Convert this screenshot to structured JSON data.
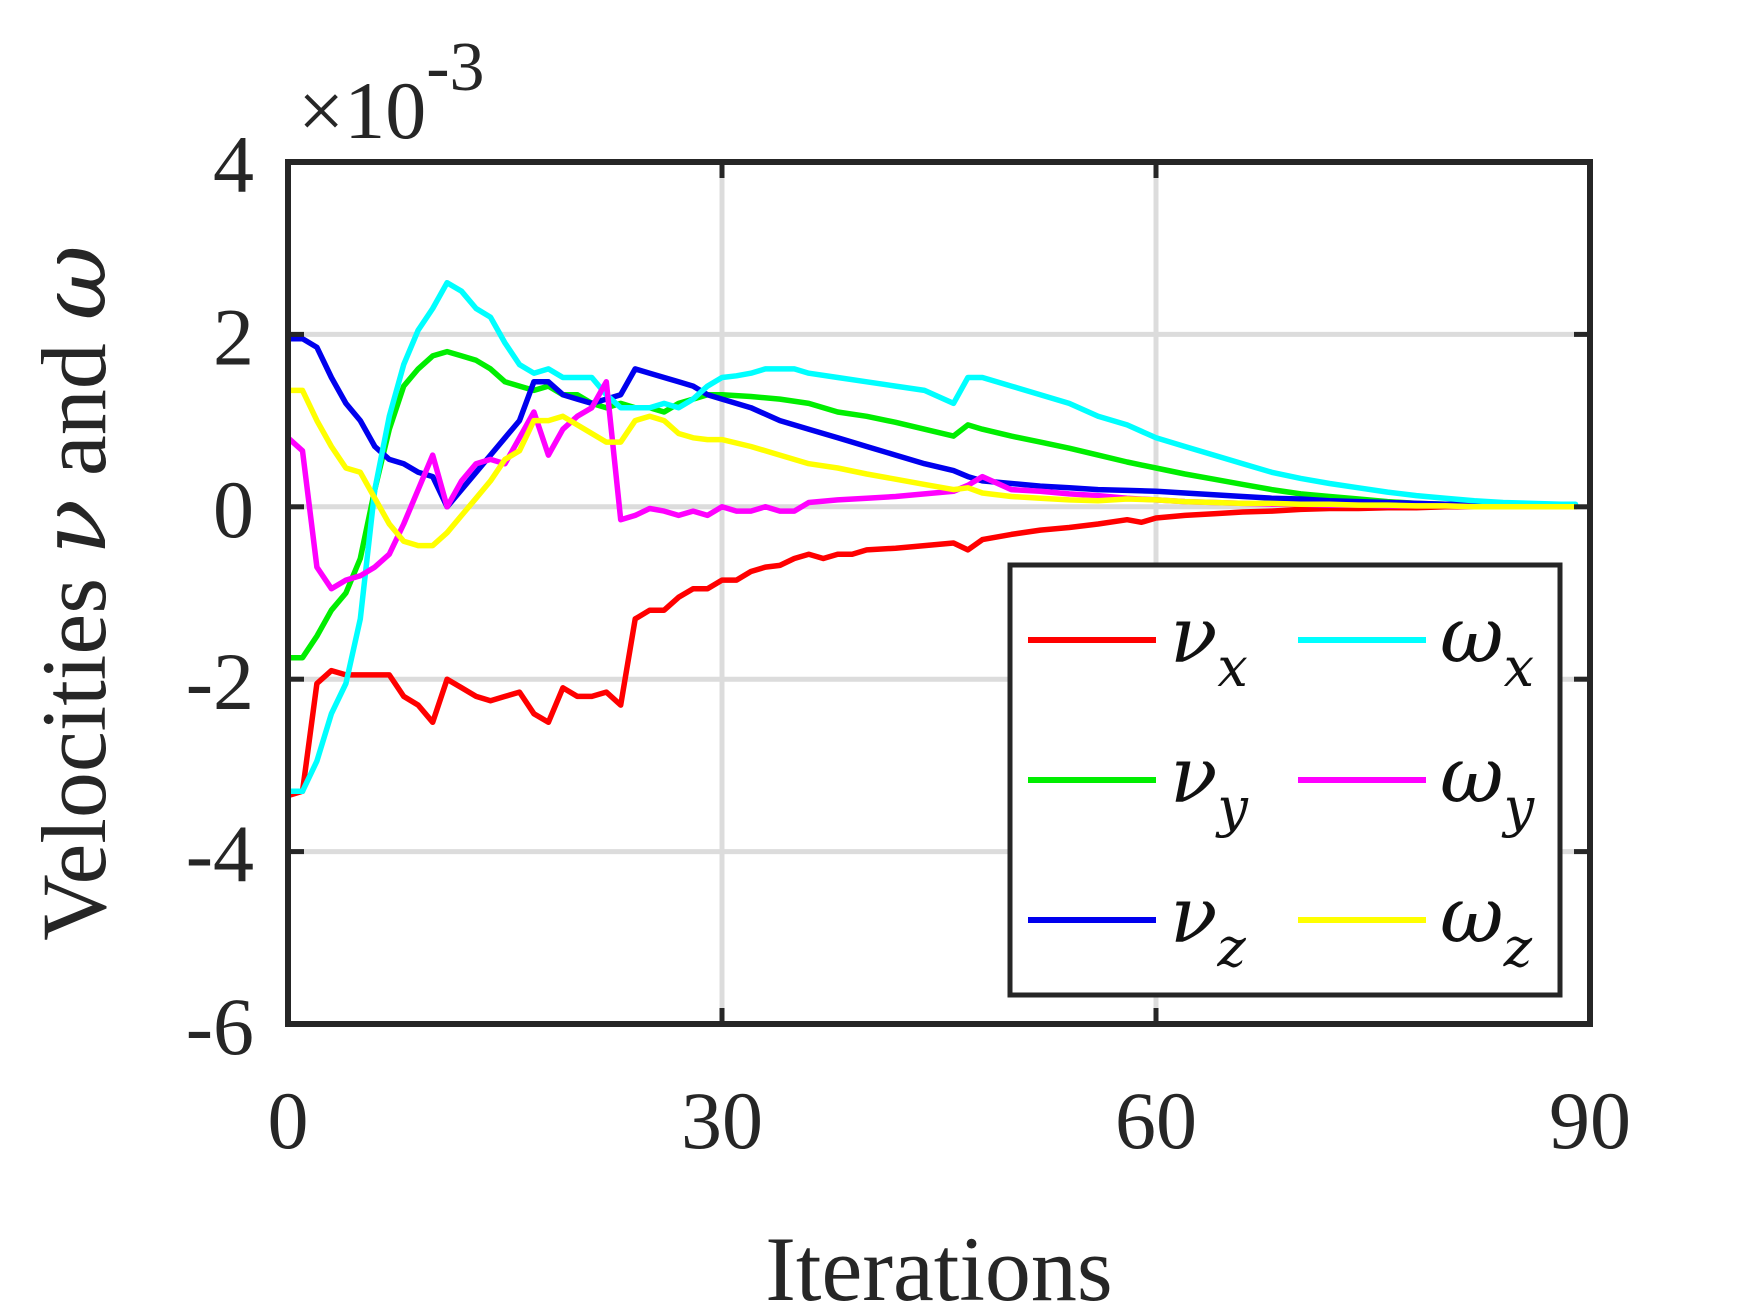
{
  "chart_data": {
    "type": "line",
    "title": "",
    "xlabel": "Iterations",
    "ylabel": {
      "prefix": "Velocities ",
      "nu": "ν",
      "mid": " and ",
      "omega": "ω"
    },
    "exponent_label": {
      "prefix": "×10",
      "power": "-3"
    },
    "x_ticks": [
      "0",
      "30",
      "60",
      "90"
    ],
    "x_tick_values": [
      0,
      30,
      60,
      90
    ],
    "y_ticks": [
      "-6",
      "-4",
      "-2",
      "0",
      "2",
      "4"
    ],
    "y_tick_values": [
      -6,
      -4,
      -2,
      0,
      2,
      4
    ],
    "xlim": [
      0,
      90
    ],
    "ylim": [
      -6,
      4
    ],
    "y_scale_note": "values in units of 1e-3",
    "grid": true,
    "legend_position": "lower-right",
    "legend_columns": 2,
    "series": [
      {
        "name": "νx",
        "base": "ν",
        "sub": "x",
        "color": "#ff0000",
        "x": [
          0,
          1,
          2,
          3,
          4,
          5,
          6,
          7,
          8,
          9,
          10,
          11,
          12,
          13,
          14,
          15,
          16,
          17,
          18,
          19,
          20,
          21,
          22,
          23,
          24,
          25,
          26,
          27,
          28,
          29,
          30,
          31,
          32,
          33,
          34,
          35,
          36,
          37,
          38,
          39,
          40,
          42,
          44,
          46,
          47,
          48,
          50,
          52,
          54,
          56,
          58,
          59,
          60,
          62,
          64,
          66,
          68,
          70,
          72,
          74,
          76,
          78,
          80,
          82,
          84,
          86,
          88,
          89
        ],
        "y": [
          -3.35,
          -3.3,
          -2.05,
          -1.9,
          -1.95,
          -1.95,
          -1.95,
          -1.95,
          -2.2,
          -2.3,
          -2.5,
          -2.0,
          -2.1,
          -2.2,
          -2.25,
          -2.2,
          -2.15,
          -2.4,
          -2.5,
          -2.1,
          -2.2,
          -2.2,
          -2.15,
          -2.3,
          -1.3,
          -1.2,
          -1.2,
          -1.05,
          -0.95,
          -0.95,
          -0.85,
          -0.85,
          -0.75,
          -0.7,
          -0.68,
          -0.6,
          -0.55,
          -0.6,
          -0.55,
          -0.55,
          -0.5,
          -0.48,
          -0.45,
          -0.42,
          -0.5,
          -0.38,
          -0.32,
          -0.27,
          -0.24,
          -0.2,
          -0.15,
          -0.18,
          -0.13,
          -0.1,
          -0.08,
          -0.06,
          -0.05,
          -0.03,
          -0.02,
          -0.02,
          -0.01,
          -0.01,
          0.0,
          0.0,
          0.0,
          0.0,
          0.0,
          0.0
        ]
      },
      {
        "name": "νy",
        "base": "ν",
        "sub": "y",
        "color": "#00ee00",
        "x": [
          0,
          1,
          2,
          3,
          4,
          5,
          6,
          7,
          8,
          9,
          10,
          11,
          12,
          13,
          14,
          15,
          16,
          17,
          18,
          19,
          20,
          21,
          22,
          23,
          24,
          25,
          26,
          27,
          28,
          29,
          30,
          32,
          34,
          36,
          38,
          40,
          42,
          44,
          46,
          47,
          48,
          50,
          52,
          54,
          56,
          58,
          60,
          62,
          64,
          66,
          68,
          70,
          72,
          74,
          76,
          78,
          80,
          82,
          84,
          86,
          88,
          89
        ],
        "y": [
          -1.75,
          -1.75,
          -1.5,
          -1.2,
          -1.0,
          -0.6,
          0.2,
          0.9,
          1.4,
          1.6,
          1.75,
          1.8,
          1.75,
          1.7,
          1.6,
          1.45,
          1.4,
          1.35,
          1.4,
          1.3,
          1.3,
          1.2,
          1.15,
          1.2,
          1.15,
          1.15,
          1.1,
          1.2,
          1.25,
          1.3,
          1.3,
          1.28,
          1.25,
          1.2,
          1.1,
          1.05,
          0.98,
          0.9,
          0.82,
          0.95,
          0.9,
          0.82,
          0.75,
          0.68,
          0.6,
          0.52,
          0.45,
          0.38,
          0.32,
          0.26,
          0.2,
          0.15,
          0.12,
          0.09,
          0.06,
          0.04,
          0.03,
          0.02,
          0.02,
          0.01,
          0.01,
          0.01
        ]
      },
      {
        "name": "νz",
        "base": "ν",
        "sub": "z",
        "color": "#0000ee",
        "x": [
          0,
          1,
          2,
          3,
          4,
          5,
          6,
          7,
          8,
          9,
          10,
          11,
          12,
          13,
          14,
          15,
          16,
          17,
          18,
          19,
          20,
          21,
          22,
          23,
          24,
          25,
          26,
          27,
          28,
          29,
          30,
          32,
          34,
          36,
          38,
          40,
          42,
          44,
          46,
          47,
          48,
          50,
          52,
          54,
          56,
          58,
          60,
          62,
          64,
          66,
          68,
          70,
          72,
          74,
          76,
          78,
          80,
          82,
          84,
          86,
          88,
          89
        ],
        "y": [
          1.95,
          1.95,
          1.85,
          1.5,
          1.2,
          1.0,
          0.7,
          0.55,
          0.5,
          0.4,
          0.35,
          0.0,
          0.2,
          0.4,
          0.6,
          0.8,
          1.0,
          1.45,
          1.45,
          1.3,
          1.25,
          1.2,
          1.25,
          1.3,
          1.6,
          1.55,
          1.5,
          1.45,
          1.4,
          1.3,
          1.25,
          1.15,
          1.0,
          0.9,
          0.8,
          0.7,
          0.6,
          0.5,
          0.42,
          0.35,
          0.3,
          0.27,
          0.24,
          0.22,
          0.2,
          0.19,
          0.18,
          0.16,
          0.14,
          0.12,
          0.1,
          0.09,
          0.07,
          0.06,
          0.05,
          0.04,
          0.03,
          0.03,
          0.02,
          0.02,
          0.01,
          0.01
        ]
      },
      {
        "name": "ωx",
        "base": "ω",
        "sub": "x",
        "color": "#00ffff",
        "x": [
          0,
          1,
          2,
          3,
          4,
          5,
          6,
          7,
          8,
          9,
          10,
          11,
          12,
          13,
          14,
          15,
          16,
          17,
          18,
          19,
          20,
          21,
          22,
          23,
          24,
          25,
          26,
          27,
          28,
          29,
          30,
          31,
          32,
          33,
          34,
          35,
          36,
          38,
          40,
          42,
          44,
          46,
          47,
          48,
          50,
          52,
          54,
          56,
          58,
          60,
          62,
          64,
          66,
          68,
          70,
          72,
          74,
          76,
          78,
          80,
          82,
          84,
          86,
          88,
          89
        ],
        "y": [
          -3.3,
          -3.3,
          -2.95,
          -2.4,
          -2.05,
          -1.3,
          0.2,
          1.05,
          1.65,
          2.05,
          2.3,
          2.6,
          2.5,
          2.3,
          2.2,
          1.9,
          1.65,
          1.55,
          1.6,
          1.5,
          1.5,
          1.5,
          1.3,
          1.15,
          1.15,
          1.15,
          1.2,
          1.15,
          1.25,
          1.4,
          1.5,
          1.52,
          1.55,
          1.6,
          1.6,
          1.6,
          1.55,
          1.5,
          1.45,
          1.4,
          1.35,
          1.2,
          1.5,
          1.5,
          1.4,
          1.3,
          1.2,
          1.05,
          0.95,
          0.8,
          0.7,
          0.6,
          0.5,
          0.4,
          0.33,
          0.27,
          0.22,
          0.17,
          0.13,
          0.1,
          0.07,
          0.05,
          0.04,
          0.03,
          0.03
        ]
      },
      {
        "name": "ωy",
        "base": "ω",
        "sub": "y",
        "color": "#ff00ff",
        "x": [
          0,
          1,
          2,
          3,
          4,
          5,
          6,
          7,
          8,
          9,
          10,
          11,
          12,
          13,
          14,
          15,
          16,
          17,
          18,
          19,
          20,
          21,
          22,
          23,
          24,
          25,
          26,
          27,
          28,
          29,
          30,
          31,
          32,
          33,
          34,
          35,
          36,
          38,
          40,
          42,
          44,
          46,
          47,
          48,
          50,
          52,
          54,
          56,
          58,
          60,
          62,
          64,
          66,
          68,
          70,
          72,
          74,
          76,
          78,
          80,
          82,
          84,
          86,
          88,
          89
        ],
        "y": [
          0.8,
          0.65,
          -0.7,
          -0.95,
          -0.85,
          -0.8,
          -0.7,
          -0.55,
          -0.2,
          0.2,
          0.6,
          0.0,
          0.3,
          0.5,
          0.55,
          0.5,
          0.8,
          1.1,
          0.6,
          0.9,
          1.05,
          1.15,
          1.45,
          -0.15,
          -0.1,
          -0.02,
          -0.05,
          -0.1,
          -0.05,
          -0.1,
          0.0,
          -0.05,
          -0.05,
          0.0,
          -0.05,
          -0.05,
          0.05,
          0.08,
          0.1,
          0.12,
          0.15,
          0.18,
          0.25,
          0.35,
          0.2,
          0.18,
          0.15,
          0.13,
          0.1,
          0.08,
          0.06,
          0.05,
          0.04,
          0.03,
          0.03,
          0.02,
          0.02,
          0.01,
          0.01,
          0.01,
          0.0,
          0.0,
          0.0,
          0.0,
          0.0
        ]
      },
      {
        "name": "ωz",
        "base": "ω",
        "sub": "z",
        "color": "#ffff00",
        "x": [
          0,
          1,
          2,
          3,
          4,
          5,
          6,
          7,
          8,
          9,
          10,
          11,
          12,
          13,
          14,
          15,
          16,
          17,
          18,
          19,
          20,
          21,
          22,
          23,
          24,
          25,
          26,
          27,
          28,
          29,
          30,
          32,
          34,
          36,
          38,
          40,
          42,
          44,
          46,
          47,
          48,
          50,
          52,
          54,
          56,
          58,
          60,
          62,
          64,
          66,
          68,
          70,
          72,
          74,
          76,
          78,
          80,
          82,
          84,
          86,
          88,
          89
        ],
        "y": [
          1.35,
          1.35,
          1.0,
          0.7,
          0.45,
          0.4,
          0.1,
          -0.2,
          -0.4,
          -0.45,
          -0.45,
          -0.3,
          -0.1,
          0.1,
          0.3,
          0.55,
          0.65,
          1.0,
          1.0,
          1.05,
          0.95,
          0.85,
          0.75,
          0.75,
          1.0,
          1.05,
          1.0,
          0.85,
          0.8,
          0.78,
          0.78,
          0.7,
          0.6,
          0.5,
          0.45,
          0.38,
          0.32,
          0.26,
          0.2,
          0.22,
          0.16,
          0.12,
          0.1,
          0.08,
          0.07,
          0.09,
          0.08,
          0.06,
          0.05,
          0.04,
          0.04,
          0.03,
          0.03,
          0.02,
          0.02,
          0.01,
          0.01,
          0.0,
          0.0,
          0.0,
          0.0,
          0.0
        ]
      }
    ]
  }
}
